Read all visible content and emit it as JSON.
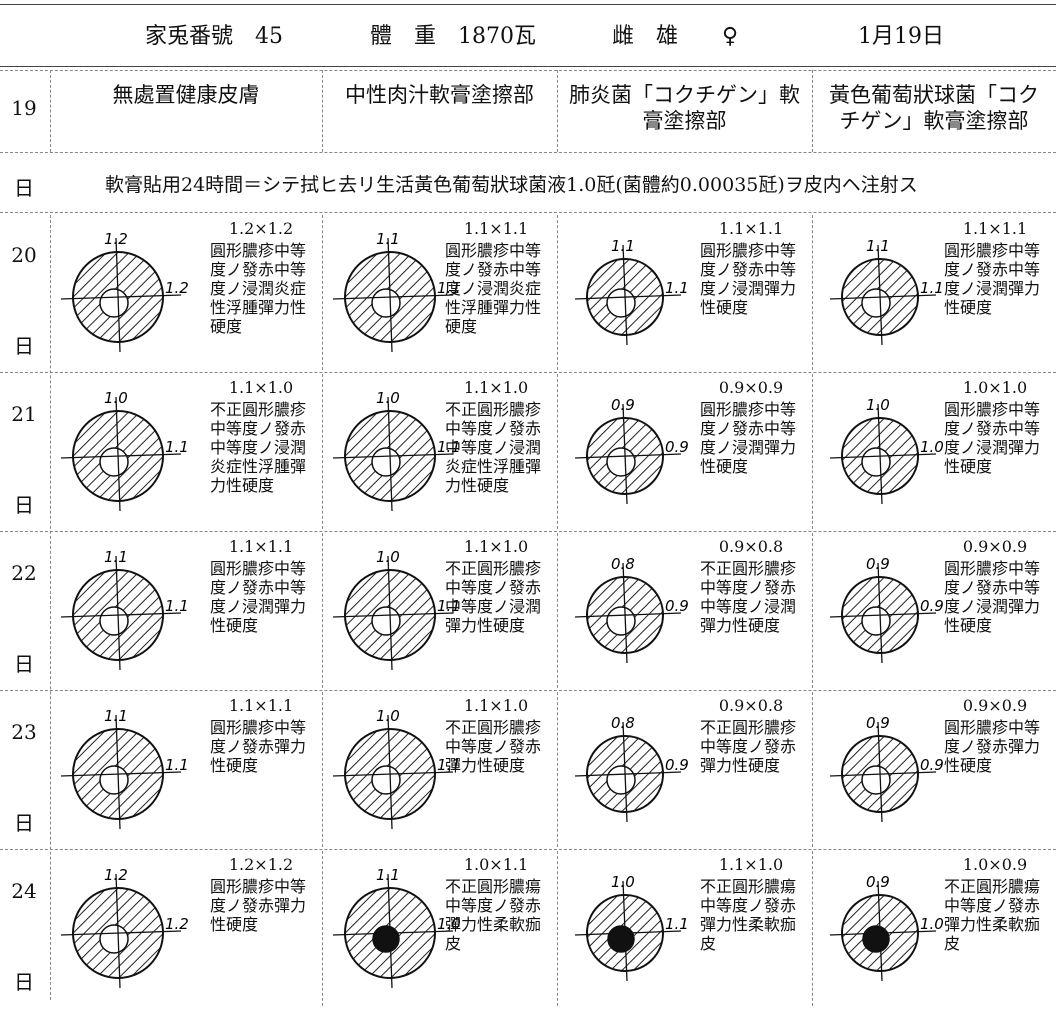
{
  "header": {
    "rabbit": "家兎番號　45",
    "weight": "體　重　1870瓦",
    "sex": "雌　雄　　♀",
    "date": "1月19日"
  },
  "start": {
    "day": "19",
    "unit": "日"
  },
  "columns": [
    "無處置健康皮膚",
    "中性肉汁軟膏塗擦部",
    "肺炎菌「コクチゲン」軟膏塗擦部",
    "黃色葡萄狀球菌「コクチゲン」軟膏塗擦部"
  ],
  "note": "軟膏貼用24時間＝シテ拭ヒ去リ生活黃色葡萄狀球菌液1.0瓩(菌體約0.00035瓩)ヲ皮内ヘ注射ス",
  "rows": [
    {
      "day": "20",
      "unit": "日",
      "cells": [
        {
          "size": "1.2×1.2",
          "v": "1.2",
          "h": "1.2",
          "desc": "圓形膿疹中等度ノ發赤中等度ノ浸潤炎症性浮腫彈力性硬度"
        },
        {
          "size": "1.1×1.1",
          "v": "1.1",
          "h": "1.1",
          "desc": "圓形膿疹中等度ノ發赤中等度ノ浸潤炎症性浮腫彈力性硬度"
        },
        {
          "size": "1.1×1.1",
          "v": "1.1",
          "h": "1.1",
          "desc": "圓形膿疹中等度ノ發赤中等度ノ浸潤彈力性硬度"
        },
        {
          "size": "1.1×1.1",
          "v": "1.1",
          "h": "1.1",
          "desc": "圓形膿疹中等度ノ發赤中等度ノ浸潤彈力性硬度"
        }
      ]
    },
    {
      "day": "21",
      "unit": "日",
      "cells": [
        {
          "size": "1.1×1.0",
          "v": "1.0",
          "h": "1.1",
          "desc": "不正圓形膿疹中等度ノ發赤中等度ノ浸潤炎症性浮腫彈力性硬度"
        },
        {
          "size": "1.1×1.0",
          "v": "1.0",
          "h": "1.1",
          "desc": "不正圓形膿疹中等度ノ發赤中等度ノ浸潤炎症性浮腫彈力性硬度"
        },
        {
          "size": "0.9×0.9",
          "v": "0.9",
          "h": "0.9",
          "desc": "圓形膿疹中等度ノ發赤中等度ノ浸潤彈力性硬度"
        },
        {
          "size": "1.0×1.0",
          "v": "1.0",
          "h": "1.0",
          "desc": "圓形膿疹中等度ノ發赤中等度ノ浸潤彈力性硬度"
        }
      ]
    },
    {
      "day": "22",
      "unit": "日",
      "cells": [
        {
          "size": "1.1×1.1",
          "v": "1.1",
          "h": "1.1",
          "desc": "圓形膿疹中等度ノ發赤中等度ノ浸潤彈力性硬度"
        },
        {
          "size": "1.1×1.0",
          "v": "1.0",
          "h": "1.1",
          "desc": "不正圓形膿疹中等度ノ發赤中等度ノ浸潤彈力性硬度"
        },
        {
          "size": "0.9×0.8",
          "v": "0.8",
          "h": "0.9",
          "desc": "不正圓形膿疹中等度ノ發赤中等度ノ浸潤彈力性硬度"
        },
        {
          "size": "0.9×0.9",
          "v": "0.9",
          "h": "0.9",
          "desc": "圓形膿疹中等度ノ發赤中等度ノ浸潤彈力性硬度"
        }
      ]
    },
    {
      "day": "23",
      "unit": "日",
      "cells": [
        {
          "size": "1.1×1.1",
          "v": "1.1",
          "h": "1.1",
          "desc": "圓形膿疹中等度ノ發赤彈力性硬度"
        },
        {
          "size": "1.1×1.0",
          "v": "1.0",
          "h": "1.1",
          "desc": "不正圓形膿疹中等度ノ發赤彈力性硬度"
        },
        {
          "size": "0.9×0.8",
          "v": "0.8",
          "h": "0.9",
          "desc": "不正圓形膿疹中等度ノ發赤彈力性硬度"
        },
        {
          "size": "0.9×0.9",
          "v": "0.9",
          "h": "0.9",
          "desc": "圓形膿疹中等度ノ發赤彈力性硬度"
        }
      ]
    },
    {
      "day": "24",
      "unit": "日",
      "cells": [
        {
          "size": "1.2×1.2",
          "v": "1.2",
          "h": "1.2",
          "desc": "圓形膿疹中等度ノ發赤彈力性硬度"
        },
        {
          "size": "1.0×1.1",
          "v": "1.1",
          "h": "1.0",
          "desc": "不正圓形膿瘍中等度ノ發赤彈力性柔軟痂皮"
        },
        {
          "size": "1.1×1.0",
          "v": "1.0",
          "h": "1.1",
          "desc": "不正圓形膿瘍中等度ノ發赤彈力性柔軟痂皮"
        },
        {
          "size": "1.0×0.9",
          "v": "0.9",
          "h": "1.0",
          "desc": "不正圓形膿瘍中等度ノ發赤彈力性柔軟痂皮"
        }
      ]
    }
  ]
}
